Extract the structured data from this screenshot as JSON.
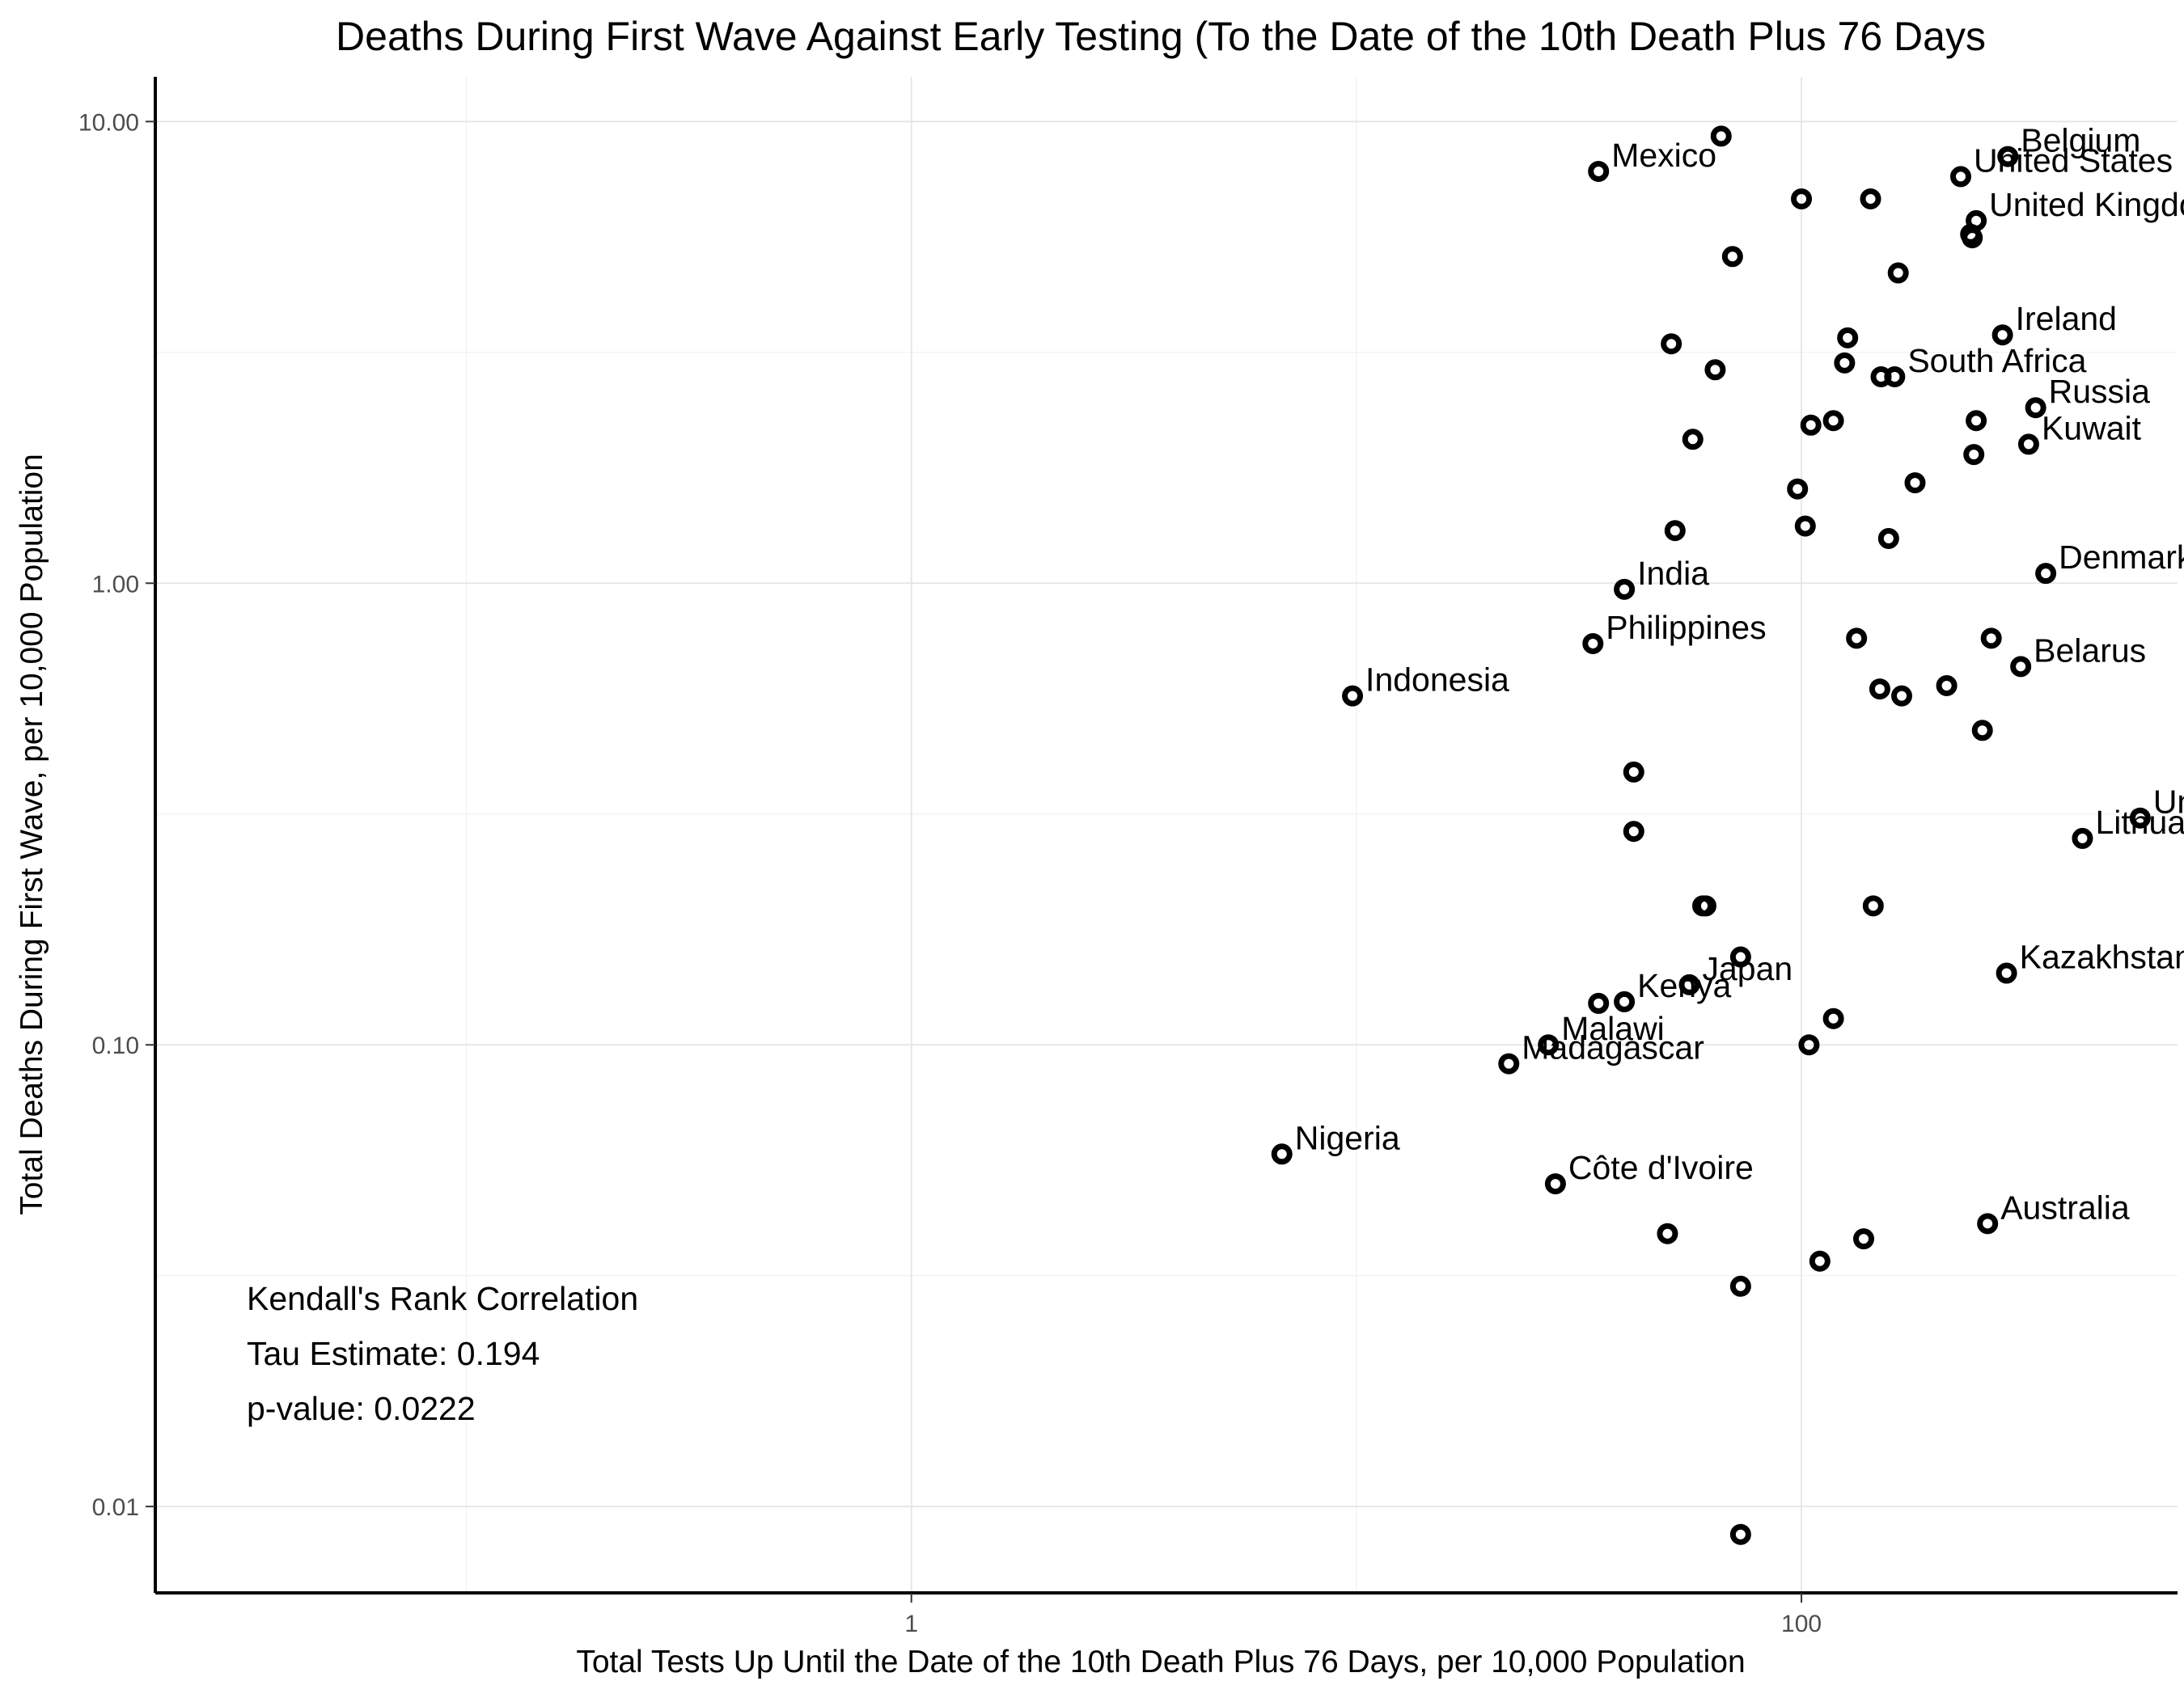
{
  "chart_data": {
    "type": "scatter",
    "title": "Deaths During First Wave Against  Early Testing (To the Date of the 10th Death Plus 76 Days",
    "xlabel": "Total Tests Up Until the Date of the 10th Death Plus 76 Days, per 10,000 Population",
    "ylabel": "Total Deaths During First Wave, per 10,000 Population",
    "x_scale": "log10",
    "y_scale": "log10",
    "xlim": [
      0.02,
      700
    ],
    "ylim": [
      0.0065,
      12.5
    ],
    "x_ticks": [
      {
        "value": 1,
        "label": "1"
      },
      {
        "value": 100,
        "label": "100"
      }
    ],
    "y_ticks": [
      {
        "value": 0.01,
        "label": "0.01"
      },
      {
        "value": 0.1,
        "label": "0.10"
      },
      {
        "value": 1,
        "label": "1.00"
      },
      {
        "value": 10,
        "label": "10.00"
      }
    ],
    "grid": true,
    "annotation": {
      "line1": "Kendall's Rank Correlation",
      "line2": "Tau Estimate: 0.194",
      "line3": "p-value: 0.0222"
    },
    "points": [
      {
        "x": 66,
        "y": 9.3,
        "label": ""
      },
      {
        "x": 35,
        "y": 7.8,
        "label": "Mexico"
      },
      {
        "x": 100,
        "y": 6.8,
        "label": ""
      },
      {
        "x": 143,
        "y": 6.8,
        "label": ""
      },
      {
        "x": 70,
        "y": 5.1,
        "label": ""
      },
      {
        "x": 291,
        "y": 8.4,
        "label": "Belgium"
      },
      {
        "x": 228,
        "y": 7.6,
        "label": "United States"
      },
      {
        "x": 247,
        "y": 6.1,
        "label": "United Kingdom"
      },
      {
        "x": 240,
        "y": 5.7,
        "label": ""
      },
      {
        "x": 242,
        "y": 5.6,
        "label": ""
      },
      {
        "x": 165,
        "y": 4.7,
        "label": ""
      },
      {
        "x": 283,
        "y": 3.45,
        "label": "Ireland"
      },
      {
        "x": 127,
        "y": 3.4,
        "label": ""
      },
      {
        "x": 51,
        "y": 3.3,
        "label": ""
      },
      {
        "x": 125,
        "y": 3.0,
        "label": ""
      },
      {
        "x": 64,
        "y": 2.9,
        "label": ""
      },
      {
        "x": 151,
        "y": 2.8,
        "label": ""
      },
      {
        "x": 162,
        "y": 2.8,
        "label": "South Africa"
      },
      {
        "x": 336,
        "y": 2.4,
        "label": "Russia"
      },
      {
        "x": 247,
        "y": 2.25,
        "label": ""
      },
      {
        "x": 118,
        "y": 2.25,
        "label": ""
      },
      {
        "x": 105,
        "y": 2.2,
        "label": ""
      },
      {
        "x": 57,
        "y": 2.05,
        "label": ""
      },
      {
        "x": 324,
        "y": 2.0,
        "label": "Kuwait"
      },
      {
        "x": 244,
        "y": 1.9,
        "label": ""
      },
      {
        "x": 98,
        "y": 1.6,
        "label": ""
      },
      {
        "x": 180,
        "y": 1.65,
        "label": ""
      },
      {
        "x": 52,
        "y": 1.3,
        "label": ""
      },
      {
        "x": 102,
        "y": 1.33,
        "label": ""
      },
      {
        "x": 157,
        "y": 1.25,
        "label": ""
      },
      {
        "x": 354,
        "y": 1.05,
        "label": "Denmark"
      },
      {
        "x": 40,
        "y": 0.97,
        "label": "India"
      },
      {
        "x": 34,
        "y": 0.74,
        "label": "Philippines"
      },
      {
        "x": 133,
        "y": 0.76,
        "label": ""
      },
      {
        "x": 267,
        "y": 0.76,
        "label": ""
      },
      {
        "x": 9.8,
        "y": 0.57,
        "label": "Indonesia"
      },
      {
        "x": 150,
        "y": 0.59,
        "label": ""
      },
      {
        "x": 168,
        "y": 0.57,
        "label": ""
      },
      {
        "x": 212,
        "y": 0.6,
        "label": ""
      },
      {
        "x": 311,
        "y": 0.66,
        "label": "Belarus"
      },
      {
        "x": 255,
        "y": 0.48,
        "label": ""
      },
      {
        "x": 42,
        "y": 0.39,
        "label": ""
      },
      {
        "x": 42,
        "y": 0.29,
        "label": ""
      },
      {
        "x": 577,
        "y": 0.31,
        "label": "Uni"
      },
      {
        "x": 428,
        "y": 0.28,
        "label": "Lithuania"
      },
      {
        "x": 60,
        "y": 0.2,
        "label": ""
      },
      {
        "x": 61,
        "y": 0.2,
        "label": ""
      },
      {
        "x": 145,
        "y": 0.2,
        "label": ""
      },
      {
        "x": 73,
        "y": 0.155,
        "label": ""
      },
      {
        "x": 289,
        "y": 0.143,
        "label": "Kazakhstan"
      },
      {
        "x": 56,
        "y": 0.135,
        "label": "Japan"
      },
      {
        "x": 40,
        "y": 0.124,
        "label": "Kenya"
      },
      {
        "x": 35,
        "y": 0.123,
        "label": ""
      },
      {
        "x": 118,
        "y": 0.114,
        "label": ""
      },
      {
        "x": 27,
        "y": 0.1,
        "label": "Malawi"
      },
      {
        "x": 104,
        "y": 0.1,
        "label": ""
      },
      {
        "x": 22,
        "y": 0.091,
        "label": "Madagascar"
      },
      {
        "x": 6.8,
        "y": 0.058,
        "label": "Nigeria"
      },
      {
        "x": 28,
        "y": 0.05,
        "label": "Côte d'Ivoire"
      },
      {
        "x": 50,
        "y": 0.039,
        "label": ""
      },
      {
        "x": 110,
        "y": 0.034,
        "label": ""
      },
      {
        "x": 73,
        "y": 0.03,
        "label": ""
      },
      {
        "x": 138,
        "y": 0.038,
        "label": ""
      },
      {
        "x": 262,
        "y": 0.041,
        "label": "Australia"
      },
      {
        "x": 73,
        "y": 0.0087,
        "label": ""
      }
    ]
  }
}
